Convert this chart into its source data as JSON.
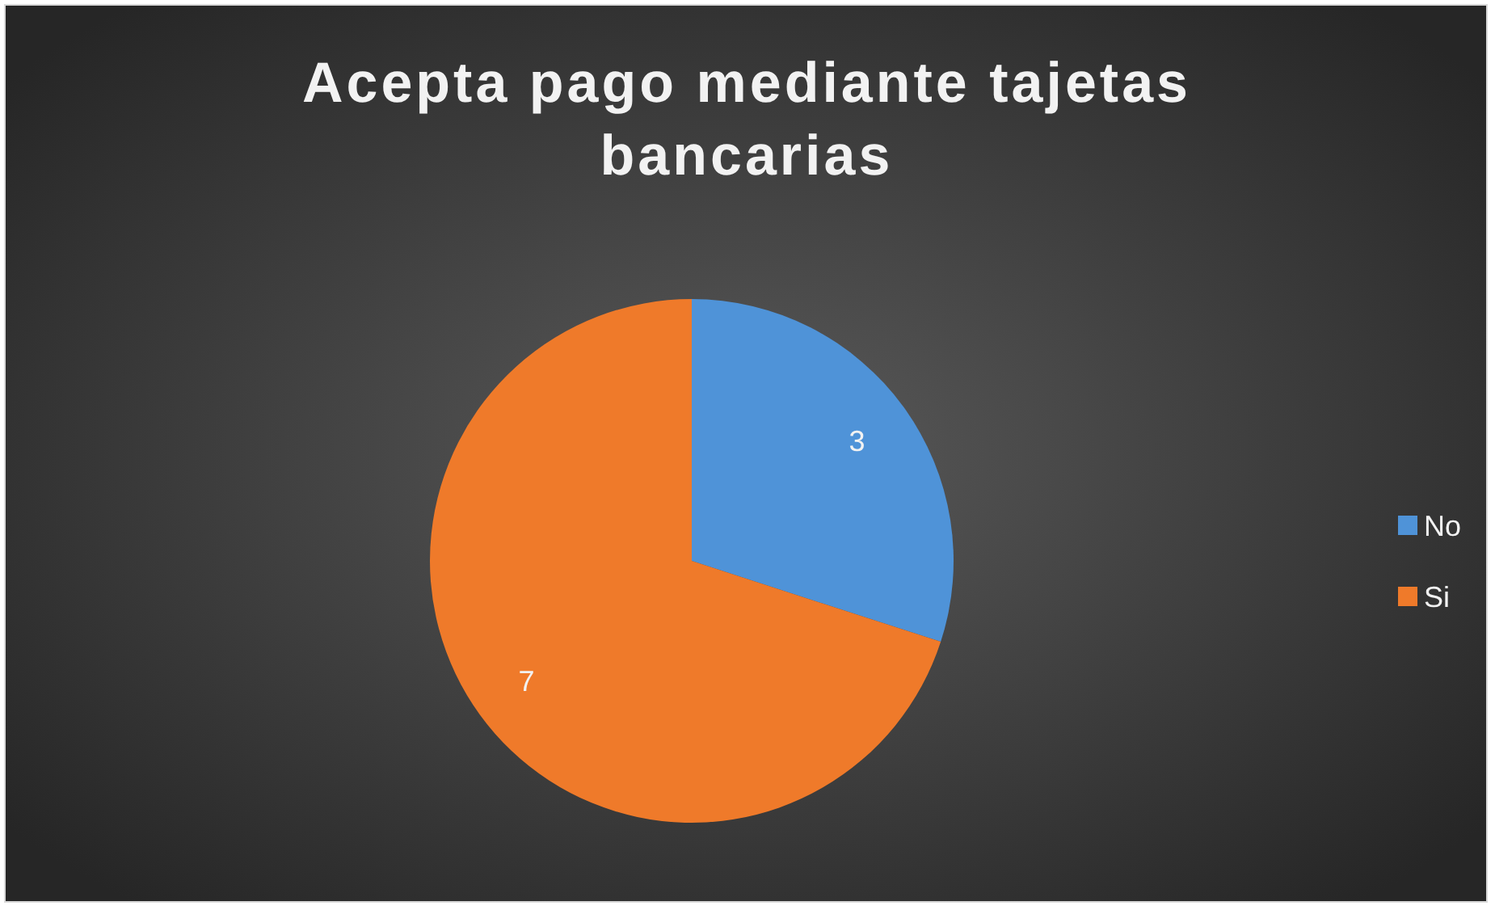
{
  "chart_data": {
    "type": "pie",
    "title": "Acepta pago mediante tajetas bancarias",
    "categories": [
      "No",
      "Si"
    ],
    "values": [
      3,
      7
    ],
    "colors": [
      "#4f93d8",
      "#ef7a2a"
    ],
    "data_labels": true,
    "legend": "right"
  }
}
